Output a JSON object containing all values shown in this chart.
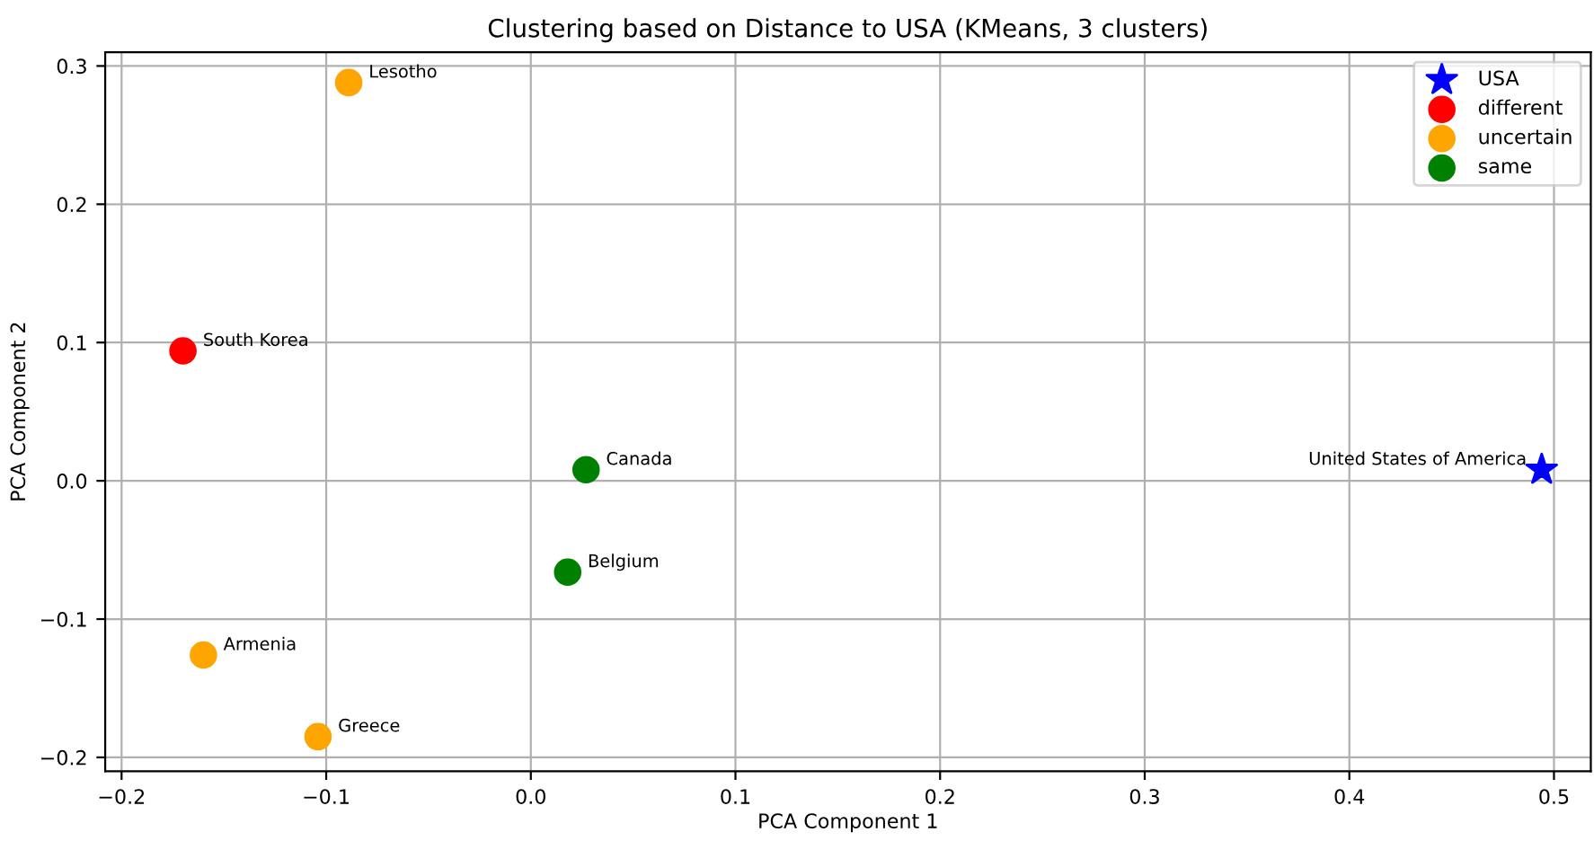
{
  "chart_data": {
    "type": "scatter",
    "title": "Clustering based on Distance to USA (KMeans, 3 clusters)",
    "xlabel": "PCA Component 1",
    "ylabel": "PCA Component 2",
    "xlim": [
      -0.208,
      0.518
    ],
    "ylim": [
      -0.21,
      0.31
    ],
    "xticks": [
      {
        "value": -0.2,
        "label": "−0.2"
      },
      {
        "value": -0.1,
        "label": "−0.1"
      },
      {
        "value": 0,
        "label": "0.0"
      },
      0.1,
      0.2,
      0.3,
      0.4,
      0.5
    ],
    "yticks": [
      {
        "value": -0.2,
        "label": "−0.2"
      },
      {
        "value": -0.1,
        "label": "−0.1"
      },
      {
        "value": 0,
        "label": "0.0"
      },
      0.1,
      0.2,
      0.3
    ],
    "grid": true,
    "legend": "top right",
    "series": [
      {
        "name": "USA",
        "color": "#0000ff",
        "marker": "star",
        "x": [
          0.494
        ],
        "values": [
          0.008
        ]
      },
      {
        "name": "different",
        "color": "#ff0000",
        "marker": "circle",
        "x": [
          -0.17
        ],
        "values": [
          0.094
        ]
      },
      {
        "name": "uncertain",
        "color": "#ffa500",
        "marker": "circle",
        "x": [
          -0.089,
          -0.16,
          -0.104
        ],
        "values": [
          0.288,
          -0.126,
          -0.185
        ]
      },
      {
        "name": "same",
        "color": "#008000",
        "marker": "circle",
        "x": [
          0.027,
          0.018
        ],
        "values": [
          0.008,
          -0.066
        ]
      }
    ],
    "annotations": [
      {
        "text": "United States of America",
        "x": 0.494,
        "y": 0.008
      },
      {
        "text": "South Korea",
        "x": -0.17,
        "y": 0.094
      },
      {
        "text": "Lesotho",
        "x": -0.089,
        "y": 0.288
      },
      {
        "text": "Armenia",
        "x": -0.16,
        "y": -0.126
      },
      {
        "text": "Greece",
        "x": -0.104,
        "y": -0.185
      },
      {
        "text": "Canada",
        "x": 0.027,
        "y": 0.008
      },
      {
        "text": "Belgium",
        "x": 0.018,
        "y": -0.066
      }
    ]
  }
}
